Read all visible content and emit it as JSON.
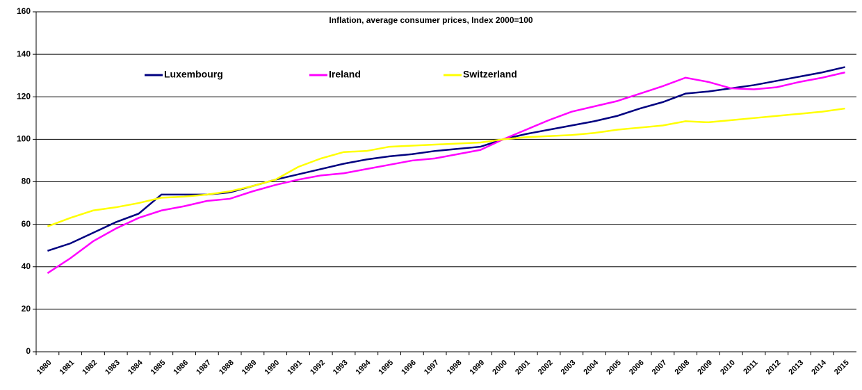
{
  "chart_data": {
    "type": "line",
    "title": "Inflation, average consumer prices, Index 2000=100",
    "categories": [
      "1980",
      "1981",
      "1982",
      "1983",
      "1984",
      "1985",
      "1986",
      "1987",
      "1988",
      "1989",
      "1990",
      "1991",
      "1992",
      "1993",
      "1994",
      "1995",
      "1996",
      "1997",
      "1998",
      "1999",
      "2000",
      "2001",
      "2002",
      "2003",
      "2004",
      "2005",
      "2006",
      "2007",
      "2008",
      "2009",
      "2010",
      "2011",
      "2012",
      "2013",
      "2014",
      "2015"
    ],
    "series": [
      {
        "name": "Luxembourg",
        "color": "#000080",
        "values": [
          47.5,
          51,
          56,
          61,
          65,
          74,
          74,
          74,
          75,
          78,
          81,
          83.5,
          86,
          88.5,
          90.5,
          92,
          93,
          94.5,
          95.5,
          96.5,
          100,
          102.5,
          104.5,
          106.5,
          108.5,
          111,
          114.5,
          117.5,
          121.5,
          122.5,
          124,
          125.5,
          127.5,
          129.5,
          131.5,
          134
        ]
      },
      {
        "name": "Ireland",
        "color": "#ff00ff",
        "values": [
          37,
          44,
          52,
          58,
          63,
          66.5,
          68.5,
          71,
          72,
          75.5,
          78.5,
          81,
          83,
          84,
          86,
          88,
          90,
          91,
          93,
          95,
          100,
          104.5,
          109,
          113,
          115.5,
          118,
          121.5,
          125,
          129,
          127,
          124,
          123.5,
          124.5,
          127,
          129,
          131.5
        ]
      },
      {
        "name": "Switzerland",
        "color": "#ffff00",
        "values": [
          59,
          63,
          66.5,
          68,
          70,
          72.5,
          73,
          74,
          75.5,
          78,
          81,
          87,
          91,
          94,
          94.5,
          96.5,
          97,
          97.5,
          98,
          98.5,
          100,
          101,
          101.5,
          102,
          103,
          104.5,
          105.5,
          106.5,
          108.5,
          108,
          109,
          110,
          111,
          112,
          113,
          114.5
        ]
      }
    ],
    "ylim": [
      0,
      160
    ],
    "yticks": [
      0,
      20,
      40,
      60,
      80,
      100,
      120,
      140,
      160
    ],
    "grid": true
  }
}
